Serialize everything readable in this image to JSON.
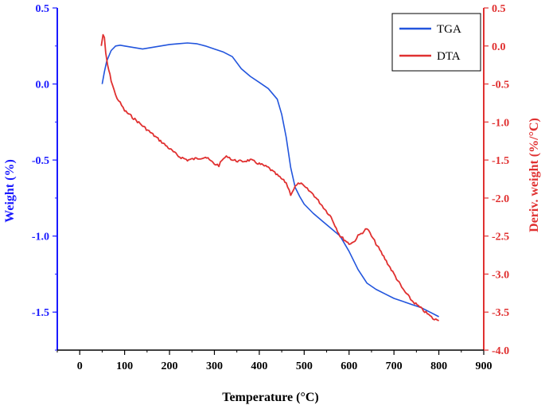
{
  "chart_data": {
    "type": "line",
    "title": "",
    "xlabel": "Temperature (°C)",
    "ylabel_left": "Weight (%)",
    "ylabel_right": "Deriv. weight (%/°C)",
    "xlim": [
      -50,
      900
    ],
    "ylim_left": [
      -1.75,
      0.5
    ],
    "ylim_right": [
      -4.0,
      0.5
    ],
    "x_ticks": [
      0,
      100,
      200,
      300,
      400,
      500,
      600,
      700,
      800,
      900
    ],
    "y_left_ticks": [
      0.5,
      0.0,
      -0.5,
      -1.0,
      -1.5
    ],
    "y_left_tick_labels": [
      "0.5",
      "0.0",
      "-0.5",
      "-1.0",
      "-1.5"
    ],
    "y_right_ticks": [
      0.5,
      0.0,
      -0.5,
      -1.0,
      -1.5,
      -2.0,
      -2.5,
      -3.0,
      -3.5,
      -4.0
    ],
    "y_right_tick_labels": [
      "0.5",
      "0.0",
      "-0.5",
      "-1.0",
      "-1.5",
      "-2.0",
      "-2.5",
      "-3.0",
      "-3.5",
      "-4.0"
    ],
    "grid": false,
    "legend_position": "top-right",
    "colors": {
      "left_axis": "#1a1aff",
      "right_axis": "#e03030",
      "tga": "#2255dd",
      "dta": "#e03030"
    },
    "series": [
      {
        "name": "TGA",
        "axis": "left",
        "color": "#2255dd",
        "x": [
          50,
          55,
          60,
          70,
          80,
          90,
          100,
          120,
          140,
          160,
          180,
          200,
          220,
          240,
          260,
          280,
          300,
          320,
          340,
          360,
          380,
          400,
          420,
          440,
          450,
          460,
          470,
          480,
          490,
          500,
          520,
          540,
          560,
          580,
          600,
          620,
          640,
          660,
          680,
          700,
          720,
          740,
          760,
          780,
          800
        ],
        "y": [
          0.0,
          0.08,
          0.15,
          0.22,
          0.25,
          0.255,
          0.25,
          0.24,
          0.23,
          0.24,
          0.25,
          0.26,
          0.265,
          0.27,
          0.265,
          0.25,
          0.23,
          0.21,
          0.18,
          0.1,
          0.05,
          0.01,
          -0.03,
          -0.1,
          -0.2,
          -0.35,
          -0.55,
          -0.68,
          -0.74,
          -0.79,
          -0.85,
          -0.9,
          -0.95,
          -1.0,
          -1.1,
          -1.22,
          -1.31,
          -1.35,
          -1.38,
          -1.41,
          -1.43,
          -1.45,
          -1.47,
          -1.5,
          -1.53
        ]
      },
      {
        "name": "DTA",
        "axis": "right",
        "color": "#e03030",
        "x": [
          48,
          52,
          55,
          58,
          62,
          70,
          80,
          90,
          100,
          120,
          140,
          160,
          180,
          200,
          220,
          240,
          260,
          280,
          300,
          310,
          320,
          330,
          340,
          360,
          380,
          400,
          420,
          440,
          460,
          470,
          480,
          490,
          500,
          510,
          520,
          540,
          560,
          580,
          600,
          610,
          620,
          630,
          640,
          650,
          660,
          680,
          700,
          720,
          740,
          760,
          780,
          790,
          800
        ],
        "y": [
          0.0,
          0.15,
          0.1,
          -0.1,
          -0.25,
          -0.45,
          -0.65,
          -0.75,
          -0.85,
          -0.95,
          -1.05,
          -1.15,
          -1.25,
          -1.35,
          -1.45,
          -1.5,
          -1.48,
          -1.46,
          -1.55,
          -1.57,
          -1.48,
          -1.45,
          -1.5,
          -1.52,
          -1.5,
          -1.55,
          -1.6,
          -1.7,
          -1.8,
          -1.95,
          -1.85,
          -1.8,
          -1.85,
          -1.9,
          -1.95,
          -2.1,
          -2.25,
          -2.5,
          -2.6,
          -2.58,
          -2.5,
          -2.45,
          -2.4,
          -2.5,
          -2.6,
          -2.8,
          -3.0,
          -3.2,
          -3.35,
          -3.45,
          -3.55,
          -3.6,
          -3.6
        ]
      }
    ]
  }
}
